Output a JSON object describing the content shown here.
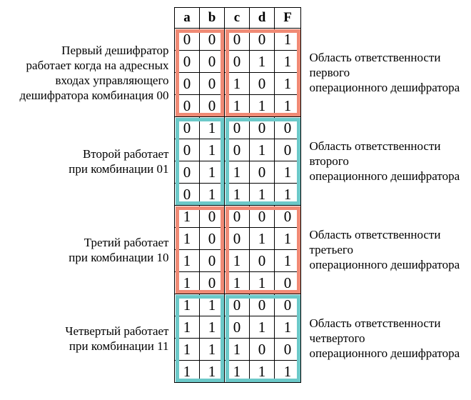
{
  "colors": {
    "salmon": "#f08a75",
    "teal": "#6cc9c9"
  },
  "table": {
    "headers": [
      "a",
      "b",
      "c",
      "d",
      "F"
    ],
    "rows": [
      [
        "0",
        "0",
        "0",
        "0",
        "1"
      ],
      [
        "0",
        "0",
        "0",
        "1",
        "1"
      ],
      [
        "0",
        "0",
        "1",
        "0",
        "1"
      ],
      [
        "0",
        "0",
        "1",
        "1",
        "1"
      ],
      [
        "0",
        "1",
        "0",
        "0",
        "0"
      ],
      [
        "0",
        "1",
        "0",
        "1",
        "0"
      ],
      [
        "0",
        "1",
        "1",
        "0",
        "1"
      ],
      [
        "0",
        "1",
        "1",
        "1",
        "1"
      ],
      [
        "1",
        "0",
        "0",
        "0",
        "0"
      ],
      [
        "1",
        "0",
        "0",
        "1",
        "1"
      ],
      [
        "1",
        "0",
        "1",
        "0",
        "1"
      ],
      [
        "1",
        "0",
        "1",
        "1",
        "0"
      ],
      [
        "1",
        "1",
        "0",
        "0",
        "0"
      ],
      [
        "1",
        "1",
        "0",
        "1",
        "1"
      ],
      [
        "1",
        "1",
        "1",
        "0",
        "0"
      ],
      [
        "1",
        "1",
        "1",
        "1",
        "1"
      ]
    ]
  },
  "groups": [
    {
      "color_key": "salmon",
      "left_text": [
        "Первый дешифратор",
        "работает когда на адресных",
        "входах управляющего",
        "дешифратора комбинация 00"
      ],
      "right_text": [
        "Область ответственности",
        "первого",
        "операционного дешифратора"
      ]
    },
    {
      "color_key": "teal",
      "left_text": [
        "Второй работает",
        "при комбинации 01"
      ],
      "right_text": [
        "Область ответственности",
        "второго",
        "операционного дешифратора"
      ]
    },
    {
      "color_key": "salmon",
      "left_text": [
        "Третий работает",
        "при комбинации 10"
      ],
      "right_text": [
        "Область ответственности",
        "третьего",
        "операционного дешифратора"
      ]
    },
    {
      "color_key": "teal",
      "left_text": [
        "Четвертый работает",
        "при комбинации 11"
      ],
      "right_text": [
        "Область ответственности",
        "четвертого",
        "операционного дешифратора"
      ]
    }
  ]
}
